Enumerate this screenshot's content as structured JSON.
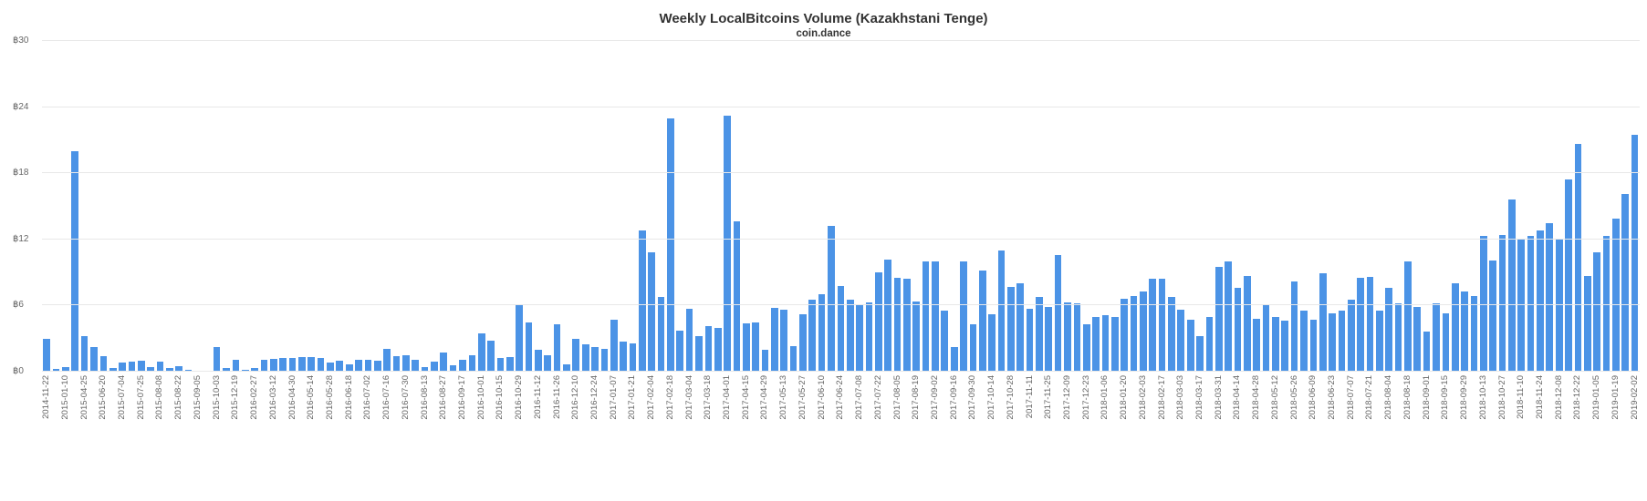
{
  "chart_data": {
    "type": "bar",
    "title": "Weekly LocalBitcoins Volume (Kazakhstani Tenge)",
    "subtitle": "coin.dance",
    "xlabel": "",
    "ylabel": "",
    "ylim": [
      0,
      30
    ],
    "y_ticks": [
      0,
      6,
      12,
      18,
      24,
      30
    ],
    "y_tick_labels": [
      "฿0",
      "฿6",
      "฿12",
      "฿18",
      "฿24",
      "฿30"
    ],
    "grid": true,
    "legend": "none",
    "bar_color": "#4b93e6",
    "grid_color": "#e8e8e8",
    "labels": [
      "2014-11-22",
      "",
      "2015-01-10",
      "",
      "2015-04-25",
      "",
      "2015-06-20",
      "",
      "2015-07-04",
      "",
      "2015-07-25",
      "",
      "2015-08-08",
      "",
      "2015-08-22",
      "",
      "2015-09-05",
      "",
      "2015-10-03",
      "",
      "2015-12-19",
      "",
      "2016-02-27",
      "",
      "2016-03-12",
      "",
      "2016-04-30",
      "",
      "2016-05-14",
      "",
      "2016-05-28",
      "",
      "2016-06-18",
      "",
      "2016-07-02",
      "",
      "2016-07-16",
      "",
      "2016-07-30",
      "",
      "2016-08-13",
      "",
      "2016-08-27",
      "",
      "2016-09-17",
      "",
      "2016-10-01",
      "",
      "2016-10-15",
      "",
      "2016-10-29",
      "",
      "2016-11-12",
      "",
      "2016-11-26",
      "",
      "2016-12-10",
      "",
      "2016-12-24",
      "",
      "2017-01-07",
      "",
      "2017-01-21",
      "",
      "2017-02-04",
      "",
      "2017-02-18",
      "",
      "2017-03-04",
      "",
      "2017-03-18",
      "",
      "2017-04-01",
      "",
      "2017-04-15",
      "",
      "2017-04-29",
      "",
      "2017-05-13",
      "",
      "2017-05-27",
      "",
      "2017-06-10",
      "",
      "2017-06-24",
      "",
      "2017-07-08",
      "",
      "2017-07-22",
      "",
      "2017-08-05",
      "",
      "2017-08-19",
      "",
      "2017-09-02",
      "",
      "2017-09-16",
      "",
      "2017-09-30",
      "",
      "2017-10-14",
      "",
      "2017-10-28",
      "",
      "2017-11-11",
      "",
      "2017-11-25",
      "",
      "2017-12-09",
      "",
      "2017-12-23",
      "",
      "2018-01-06",
      "",
      "2018-01-20",
      "",
      "2018-02-03",
      "",
      "2018-02-17",
      "",
      "2018-03-03",
      "",
      "2018-03-17",
      "",
      "2018-03-31",
      "",
      "2018-04-14",
      "",
      "2018-04-28",
      "",
      "2018-05-12",
      "",
      "2018-05-26",
      "",
      "2018-06-09",
      "",
      "2018-06-23",
      "",
      "2018-07-07",
      "",
      "2018-07-21",
      "",
      "2018-08-04",
      "",
      "2018-08-18",
      "",
      "2018-09-01",
      "",
      "2018-09-15",
      "",
      "2018-09-29",
      "",
      "2018-10-13",
      "",
      "2018-10-27",
      "",
      "2018-11-10",
      "",
      "2018-11-24",
      "",
      "2018-12-08",
      "",
      "2018-12-22",
      "",
      "2019-01-05",
      "",
      "2019-01-19",
      "",
      "2019-02-02"
    ],
    "values": [
      3.0,
      0.25,
      0.4,
      20.0,
      3.2,
      2.2,
      1.4,
      0.3,
      0.85,
      0.9,
      1.0,
      0.4,
      0.9,
      0.3,
      0.5,
      0.15,
      0.1,
      0.12,
      2.2,
      0.3,
      1.1,
      0.15,
      0.35,
      1.1,
      1.15,
      1.2,
      1.2,
      1.3,
      1.35,
      1.2,
      0.8,
      1.0,
      0.65,
      1.1,
      1.1,
      1.0,
      2.1,
      1.4,
      1.5,
      1.05,
      0.45,
      0.9,
      1.7,
      0.6,
      1.1,
      1.5,
      3.5,
      2.8,
      1.2,
      1.3,
      6.0,
      4.5,
      2.0,
      1.5,
      4.3,
      0.7,
      3.0,
      2.5,
      2.2,
      2.1,
      4.7,
      2.7,
      2.6,
      12.8,
      10.8,
      6.8,
      23.0,
      3.7,
      5.7,
      3.2,
      4.1,
      4.0,
      23.2,
      13.6,
      4.4,
      4.5,
      2.0,
      5.8,
      5.6,
      2.3,
      5.2,
      6.5,
      7.0,
      13.2,
      7.8,
      6.5,
      6.0,
      6.3,
      9.0,
      10.2,
      8.5,
      8.4,
      6.4,
      10.0,
      10.0,
      5.5,
      2.2,
      10.0,
      4.3,
      9.2,
      5.2,
      11.0,
      7.7,
      8.0,
      5.7,
      6.8,
      5.9,
      10.6,
      6.3,
      6.2,
      4.3,
      5.0,
      5.1,
      5.0,
      6.6,
      6.9,
      7.3,
      8.4,
      8.4,
      6.8,
      5.6,
      4.7,
      3.2,
      5.0,
      9.5,
      10.0,
      7.6,
      8.7,
      4.8,
      6.1,
      5.0,
      4.6,
      8.2,
      5.5,
      4.7,
      8.9,
      5.3,
      5.5,
      6.5,
      8.5,
      8.6,
      5.5,
      7.6,
      6.2,
      10.0,
      5.9,
      3.6,
      6.2,
      5.3,
      8.0,
      7.3,
      6.9,
      12.3,
      10.1,
      12.4,
      15.6,
      12.1,
      12.3,
      12.8,
      13.5,
      12.1,
      17.4,
      20.7,
      8.7,
      10.8,
      12.3,
      13.9,
      16.1,
      21.5
    ]
  }
}
